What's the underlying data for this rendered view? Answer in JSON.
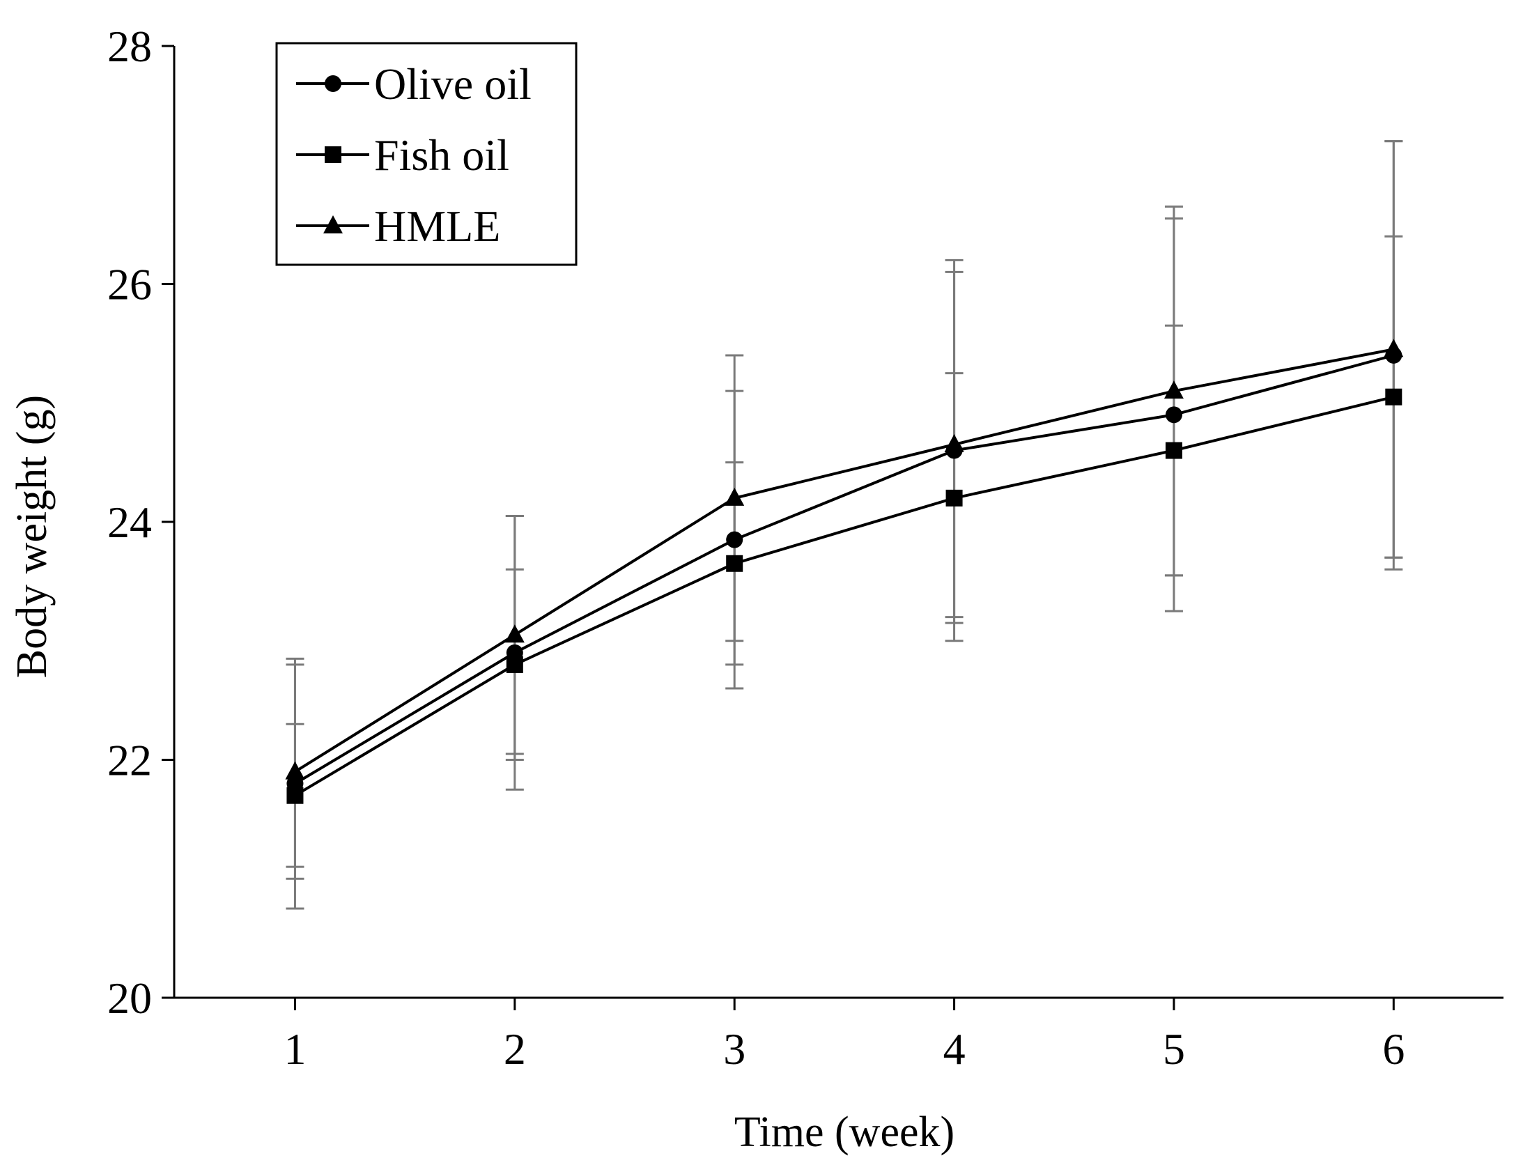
{
  "chart_data": {
    "type": "line",
    "title": "",
    "xlabel": "Time (week)",
    "ylabel": "Body weight (g)",
    "x": [
      1,
      2,
      3,
      4,
      5,
      6
    ],
    "xlim": [
      0.45,
      6.5
    ],
    "ylim": [
      20,
      28
    ],
    "yticks": [
      20,
      22,
      24,
      26,
      28
    ],
    "grid": false,
    "legend_position": "top-left",
    "colors": {
      "line": "#000000",
      "error_bar": "#7a7a7a",
      "axis": "#000000"
    },
    "series": [
      {
        "name": "Olive oil",
        "marker": "circle",
        "values": [
          21.8,
          22.9,
          23.85,
          24.6,
          24.9,
          25.4
        ],
        "error": [
          1.05,
          1.15,
          1.25,
          1.6,
          1.65,
          1.8
        ]
      },
      {
        "name": "Fish oil",
        "marker": "square",
        "values": [
          21.7,
          22.8,
          23.65,
          24.2,
          24.6,
          25.05
        ],
        "error": [
          0.6,
          0.8,
          0.85,
          1.05,
          1.05,
          1.35
        ]
      },
      {
        "name": "HMLE",
        "marker": "triangle",
        "values": [
          21.9,
          23.05,
          24.2,
          24.65,
          25.1,
          25.45
        ],
        "error": [
          0.9,
          1.0,
          1.2,
          1.45,
          1.55,
          1.75
        ]
      }
    ]
  }
}
